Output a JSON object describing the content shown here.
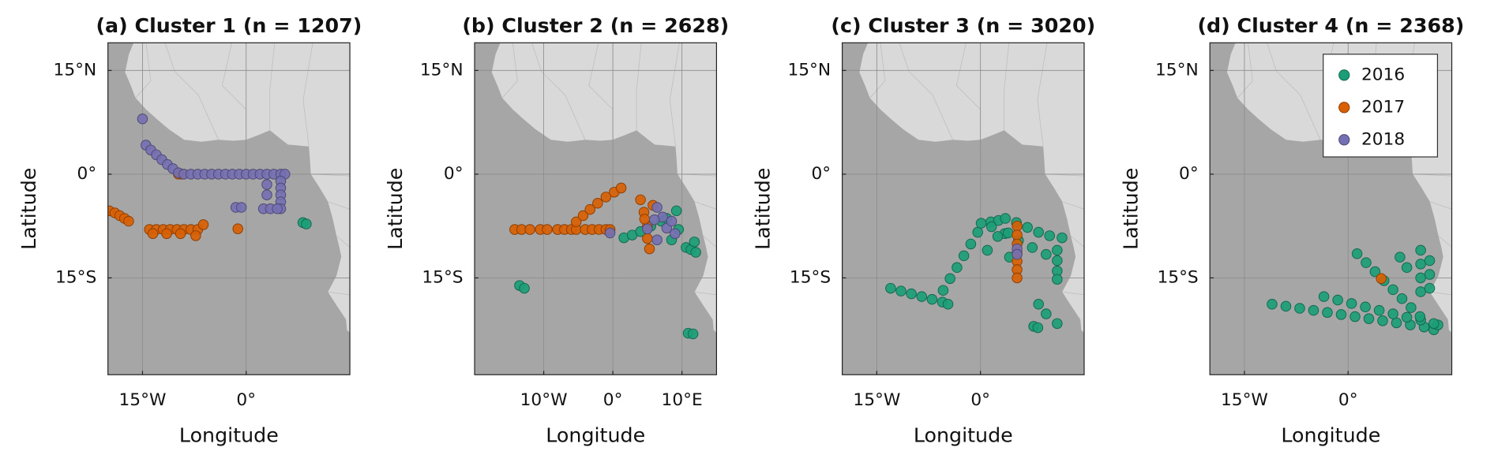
{
  "chart_data": [
    {
      "type": "scatter",
      "title": "(a) Cluster 1 (n = 1207)",
      "xlabel": "Longitude",
      "ylabel": "Latitude",
      "xlim": [
        -20,
        15
      ],
      "ylim": [
        -29,
        19
      ],
      "xticks": [
        {
          "value": -15,
          "label": "15°W"
        },
        {
          "value": 0,
          "label": "0°"
        }
      ],
      "yticks": [
        {
          "value": 15,
          "label": "15°N"
        },
        {
          "value": 0,
          "label": "0°"
        },
        {
          "value": -15,
          "label": "15°S"
        }
      ],
      "grid": true,
      "series": [
        {
          "color": "#1b9e77",
          "x": [
            8.2,
            8.7
          ],
          "values": [
            -7.0,
            -7.2
          ]
        },
        {
          "color": "#d95f02",
          "x": [
            -19.8,
            -19.0,
            -18.3,
            -17.6,
            -17.0,
            -14.0,
            -13.0,
            -12.0,
            -11.0,
            -10.0,
            -9.0,
            -8.0,
            -7.0,
            -13.5,
            -11.5,
            -9.5,
            -7.3,
            -6.2,
            -1.2,
            -9.8,
            -9.3
          ],
          "values": [
            -5.3,
            -5.6,
            -6.0,
            -6.4,
            -6.8,
            -8.0,
            -8.0,
            -8.0,
            -8.0,
            -8.0,
            -8.0,
            -8.0,
            -8.0,
            -8.6,
            -8.6,
            -8.6,
            -8.9,
            -7.3,
            -7.9,
            0.0,
            0.0
          ]
        },
        {
          "color": "#7570b3",
          "x": [
            -15.0,
            -14.5,
            -13.8,
            -13.0,
            -12.2,
            -11.4,
            -10.6,
            -9.8,
            -9.0,
            -8.0,
            -7.0,
            -6.0,
            -5.0,
            -4.0,
            -3.0,
            -2.0,
            -1.0,
            0.0,
            1.0,
            2.0,
            3.0,
            4.0,
            5.0,
            5.6,
            5.0,
            5.0,
            5.0,
            5.0,
            5.0,
            2.5,
            3.5,
            4.5,
            -1.5,
            -0.7,
            3.0,
            3.0
          ],
          "values": [
            8.0,
            4.2,
            3.5,
            2.8,
            2.1,
            1.4,
            0.8,
            0.2,
            0.0,
            0.0,
            0.0,
            0.0,
            0.0,
            0.0,
            0.0,
            0.0,
            0.0,
            0.0,
            0.0,
            0.0,
            0.0,
            0.0,
            0.0,
            0.0,
            -1.0,
            -2.0,
            -3.0,
            -4.0,
            -5.0,
            -5.0,
            -5.0,
            -5.0,
            -4.8,
            -4.8,
            -1.5,
            -3.0
          ]
        }
      ]
    },
    {
      "type": "scatter",
      "title": "(b) Cluster 2 (n = 2628)",
      "xlabel": "Longitude",
      "ylabel": "Latitude",
      "xlim": [
        -20,
        15
      ],
      "ylim": [
        -29,
        19
      ],
      "xticks": [
        {
          "value": -10,
          "label": "10°W"
        },
        {
          "value": 0,
          "label": "0°"
        },
        {
          "value": 10,
          "label": "10°E"
        }
      ],
      "yticks": [
        {
          "value": 15,
          "label": "15°N"
        },
        {
          "value": 0,
          "label": "0°"
        },
        {
          "value": -15,
          "label": "15°S"
        }
      ],
      "grid": true,
      "series": [
        {
          "color": "#1b9e77",
          "x": [
            -13.5,
            -12.8,
            10.9,
            11.6,
            1.6,
            2.8,
            4.0,
            5.5,
            7.0,
            7.8,
            9.2,
            10.6,
            11.3,
            12.0,
            11.8,
            8.5,
            9.5,
            -0.5
          ],
          "values": [
            -16.1,
            -16.5,
            -23.0,
            -23.1,
            -9.2,
            -8.8,
            -8.3,
            -7.5,
            -6.8,
            -6.4,
            -5.3,
            -10.6,
            -10.9,
            -11.3,
            -9.8,
            -9.5,
            -8.0,
            -8.2
          ]
        },
        {
          "color": "#d95f02",
          "x": [
            -14.2,
            -13.2,
            -12.0,
            -10.5,
            -9.5,
            -8.0,
            -7.0,
            -6.0,
            -5.3,
            -4.0,
            -3.0,
            -2.0,
            -1.0,
            -0.4,
            -5.3,
            -4.3,
            -3.3,
            -2.2,
            -1.0,
            0.2,
            1.2,
            4.0,
            4.5,
            5.0,
            5.3,
            5.0,
            4.6,
            5.8
          ],
          "values": [
            -8.0,
            -8.0,
            -8.0,
            -8.0,
            -8.0,
            -8.0,
            -8.0,
            -8.0,
            -8.0,
            -8.0,
            -8.0,
            -8.0,
            -8.0,
            -8.0,
            -6.9,
            -6.0,
            -5.1,
            -4.2,
            -3.3,
            -2.6,
            -2.0,
            -3.7,
            -5.5,
            -7.5,
            -10.8,
            -9.3,
            -6.5,
            -4.5
          ]
        },
        {
          "color": "#7570b3",
          "x": [
            6.4,
            7.8,
            7.2,
            6.4,
            5.0,
            8.5,
            9.0,
            6.0,
            -0.4
          ],
          "values": [
            -4.8,
            -7.8,
            -6.2,
            -9.5,
            -7.9,
            -6.8,
            -8.6,
            -6.6,
            -8.5
          ]
        }
      ]
    },
    {
      "type": "scatter",
      "title": "(c) Cluster 3 (n = 3020)",
      "xlabel": "Longitude",
      "ylabel": "Latitude",
      "xlim": [
        -20,
        15
      ],
      "ylim": [
        -29,
        19
      ],
      "xticks": [
        {
          "value": -15,
          "label": "15°W"
        },
        {
          "value": 0,
          "label": "0°"
        }
      ],
      "yticks": [
        {
          "value": 15,
          "label": "15°N"
        },
        {
          "value": 0,
          "label": "0°"
        },
        {
          "value": -15,
          "label": "15°S"
        }
      ],
      "grid": true,
      "series": [
        {
          "color": "#1b9e77",
          "x": [
            -13.0,
            -11.5,
            -10.0,
            -8.5,
            -7.0,
            -5.5,
            -4.7,
            -5.4,
            -4.4,
            -3.4,
            -2.4,
            -1.4,
            -0.4,
            0.1,
            1.5,
            2.6,
            3.6,
            5.2,
            6.8,
            8.4,
            10.0,
            11.8,
            11.1,
            11.1,
            11.1,
            11.1,
            1.6,
            3.5,
            5.5,
            7.5,
            9.5,
            4.0,
            4.2,
            8.4,
            9.5,
            11.1,
            7.7,
            8.3,
            2.5,
            1.0
          ],
          "values": [
            -16.5,
            -16.9,
            -17.3,
            -17.7,
            -18.1,
            -18.5,
            -18.8,
            -16.8,
            -15.1,
            -13.5,
            -11.8,
            -10.1,
            -8.4,
            -7.1,
            -6.9,
            -6.7,
            -6.4,
            -7.0,
            -7.7,
            -8.4,
            -8.9,
            -9.2,
            -11.0,
            -12.5,
            -14.0,
            -15.2,
            -7.6,
            -8.6,
            -9.6,
            -10.6,
            -11.6,
            -8.5,
            -12.0,
            -18.8,
            -20.2,
            -21.6,
            -22.0,
            -22.2,
            -9.0,
            -11.0
          ]
        },
        {
          "color": "#d95f02",
          "x": [
            5.3,
            5.3,
            5.3,
            5.3,
            5.3,
            5.3,
            5.3
          ],
          "values": [
            -7.5,
            -8.8,
            -10.1,
            -11.4,
            -12.6,
            -13.8,
            -15.0
          ]
        },
        {
          "color": "#7570b3",
          "x": [
            5.3,
            5.3
          ],
          "values": [
            -10.8,
            -11.6
          ]
        }
      ]
    },
    {
      "type": "scatter",
      "title": "(d) Cluster 4 (n = 2368)",
      "xlabel": "Longitude",
      "ylabel": "Latitude",
      "xlim": [
        -20,
        15
      ],
      "ylim": [
        -29,
        19
      ],
      "xticks": [
        {
          "value": -15,
          "label": "15°W"
        },
        {
          "value": 0,
          "label": "0°"
        }
      ],
      "yticks": [
        {
          "value": 15,
          "label": "15°N"
        },
        {
          "value": 0,
          "label": "0°"
        },
        {
          "value": -15,
          "label": "15°S"
        }
      ],
      "grid": true,
      "legend": "upper right",
      "series": [
        {
          "name": "2016",
          "color": "#1b9e77",
          "x": [
            -11.0,
            -9.0,
            -7.0,
            -5.0,
            -3.0,
            -1.0,
            1.0,
            3.0,
            5.0,
            7.0,
            9.0,
            11.0,
            12.4,
            -3.5,
            -1.5,
            0.5,
            2.5,
            4.5,
            6.5,
            8.5,
            10.5,
            13.0,
            1.3,
            2.6,
            3.9,
            5.2,
            6.5,
            7.8,
            9.1,
            10.4,
            12.4,
            10.5,
            10.5,
            10.5,
            10.5,
            11.8,
            11.8,
            11.8,
            7.5,
            8.5
          ],
          "values": [
            -18.8,
            -19.1,
            -19.4,
            -19.7,
            -20.0,
            -20.3,
            -20.6,
            -20.9,
            -21.2,
            -21.5,
            -21.8,
            -22.1,
            -22.5,
            -17.7,
            -18.2,
            -18.7,
            -19.2,
            -19.7,
            -20.2,
            -20.7,
            -21.1,
            -21.8,
            -11.5,
            -12.8,
            -14.1,
            -15.4,
            -16.7,
            -18.0,
            -19.3,
            -20.6,
            -21.6,
            -11.0,
            -13.0,
            -15.0,
            -17.0,
            -12.5,
            -14.5,
            -16.5,
            -12.0,
            -13.5
          ]
        },
        {
          "name": "2017",
          "color": "#d95f02",
          "x": [
            4.8
          ],
          "values": [
            -15.1
          ]
        },
        {
          "name": "2018",
          "color": "#7570b3",
          "x": [],
          "values": []
        }
      ]
    }
  ]
}
